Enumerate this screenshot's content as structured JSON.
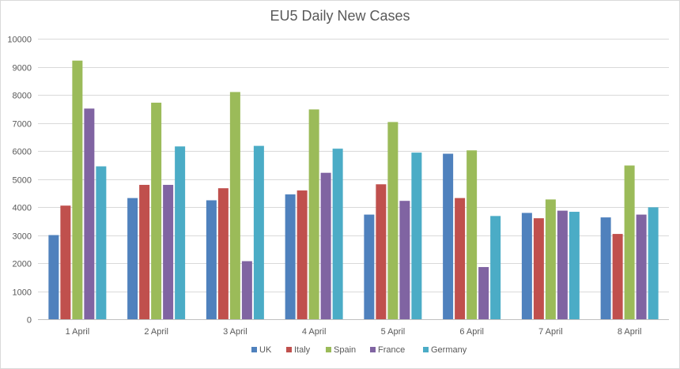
{
  "chart_data": {
    "type": "bar",
    "title": "EU5 Daily New Cases",
    "xlabel": "",
    "ylabel": "",
    "ylim": [
      0,
      10000
    ],
    "yticks": [
      0,
      1000,
      2000,
      3000,
      4000,
      5000,
      6000,
      7000,
      8000,
      9000,
      10000
    ],
    "ytick_labels": [
      "0",
      "1000",
      "2000",
      "3000",
      "4000",
      "5000",
      "6000",
      "7000",
      "8000",
      "9000",
      "10000"
    ],
    "grid": true,
    "legend_position": "bottom",
    "categories": [
      "1 April",
      "2 April",
      "3 April",
      "4 April",
      "5 April",
      "6 April",
      "7 April",
      "8 April"
    ],
    "series": [
      {
        "name": "UK",
        "color": "#4f81bd",
        "values": [
          3000,
          4320,
          4240,
          4450,
          3730,
          5900,
          3790,
          3630
        ]
      },
      {
        "name": "Italy",
        "color": "#c0504d",
        "values": [
          4050,
          4790,
          4670,
          4590,
          4810,
          4320,
          3600,
          3040
        ]
      },
      {
        "name": "Spain",
        "color": "#9bbb59",
        "values": [
          9220,
          7720,
          8100,
          7480,
          7030,
          6020,
          4270,
          5480
        ]
      },
      {
        "name": "France",
        "color": "#8064a2",
        "values": [
          7510,
          4790,
          2070,
          5220,
          4220,
          1860,
          3870,
          3730
        ]
      },
      {
        "name": "Germany",
        "color": "#4bacc6",
        "values": [
          5450,
          6160,
          6180,
          6080,
          5940,
          3680,
          3830,
          3990
        ]
      }
    ]
  }
}
